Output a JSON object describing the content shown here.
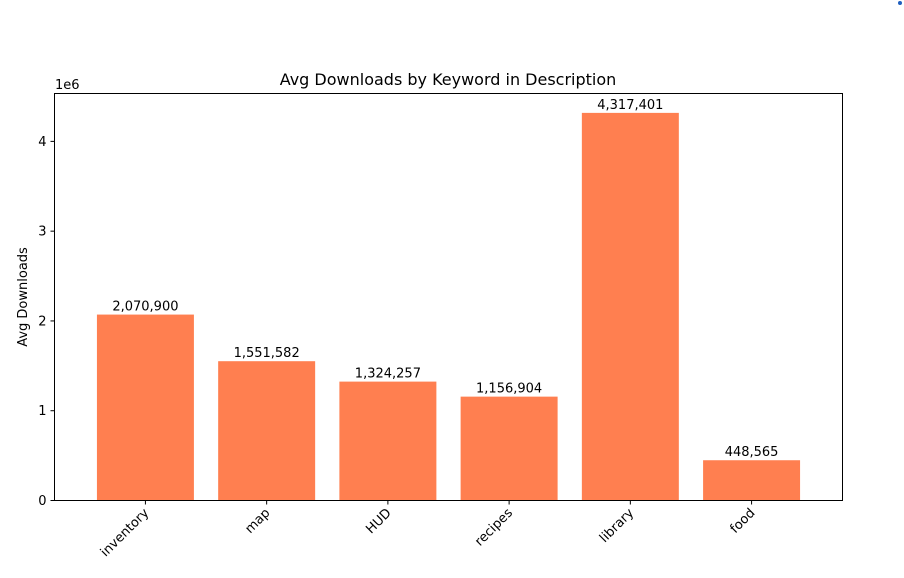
{
  "chart_data": {
    "type": "bar",
    "title": "Avg Downloads by Keyword in Description",
    "xlabel": "",
    "ylabel": "Avg Downloads",
    "scale_label": "1e6",
    "categories": [
      "inventory",
      "map",
      "HUD",
      "recipes",
      "library",
      "food"
    ],
    "values": [
      2070900,
      1551582,
      1324257,
      1156904,
      4317401,
      448565
    ],
    "data_labels": [
      "2,070,900",
      "1,551,582",
      "1,324,257",
      "1,156,904",
      "4,317,401",
      "448,565"
    ],
    "yticks": [
      0,
      1,
      2,
      3,
      4
    ],
    "ylim": [
      0,
      4533271
    ],
    "bar_color": "#ff7f50",
    "grid": false,
    "legend": "none"
  }
}
